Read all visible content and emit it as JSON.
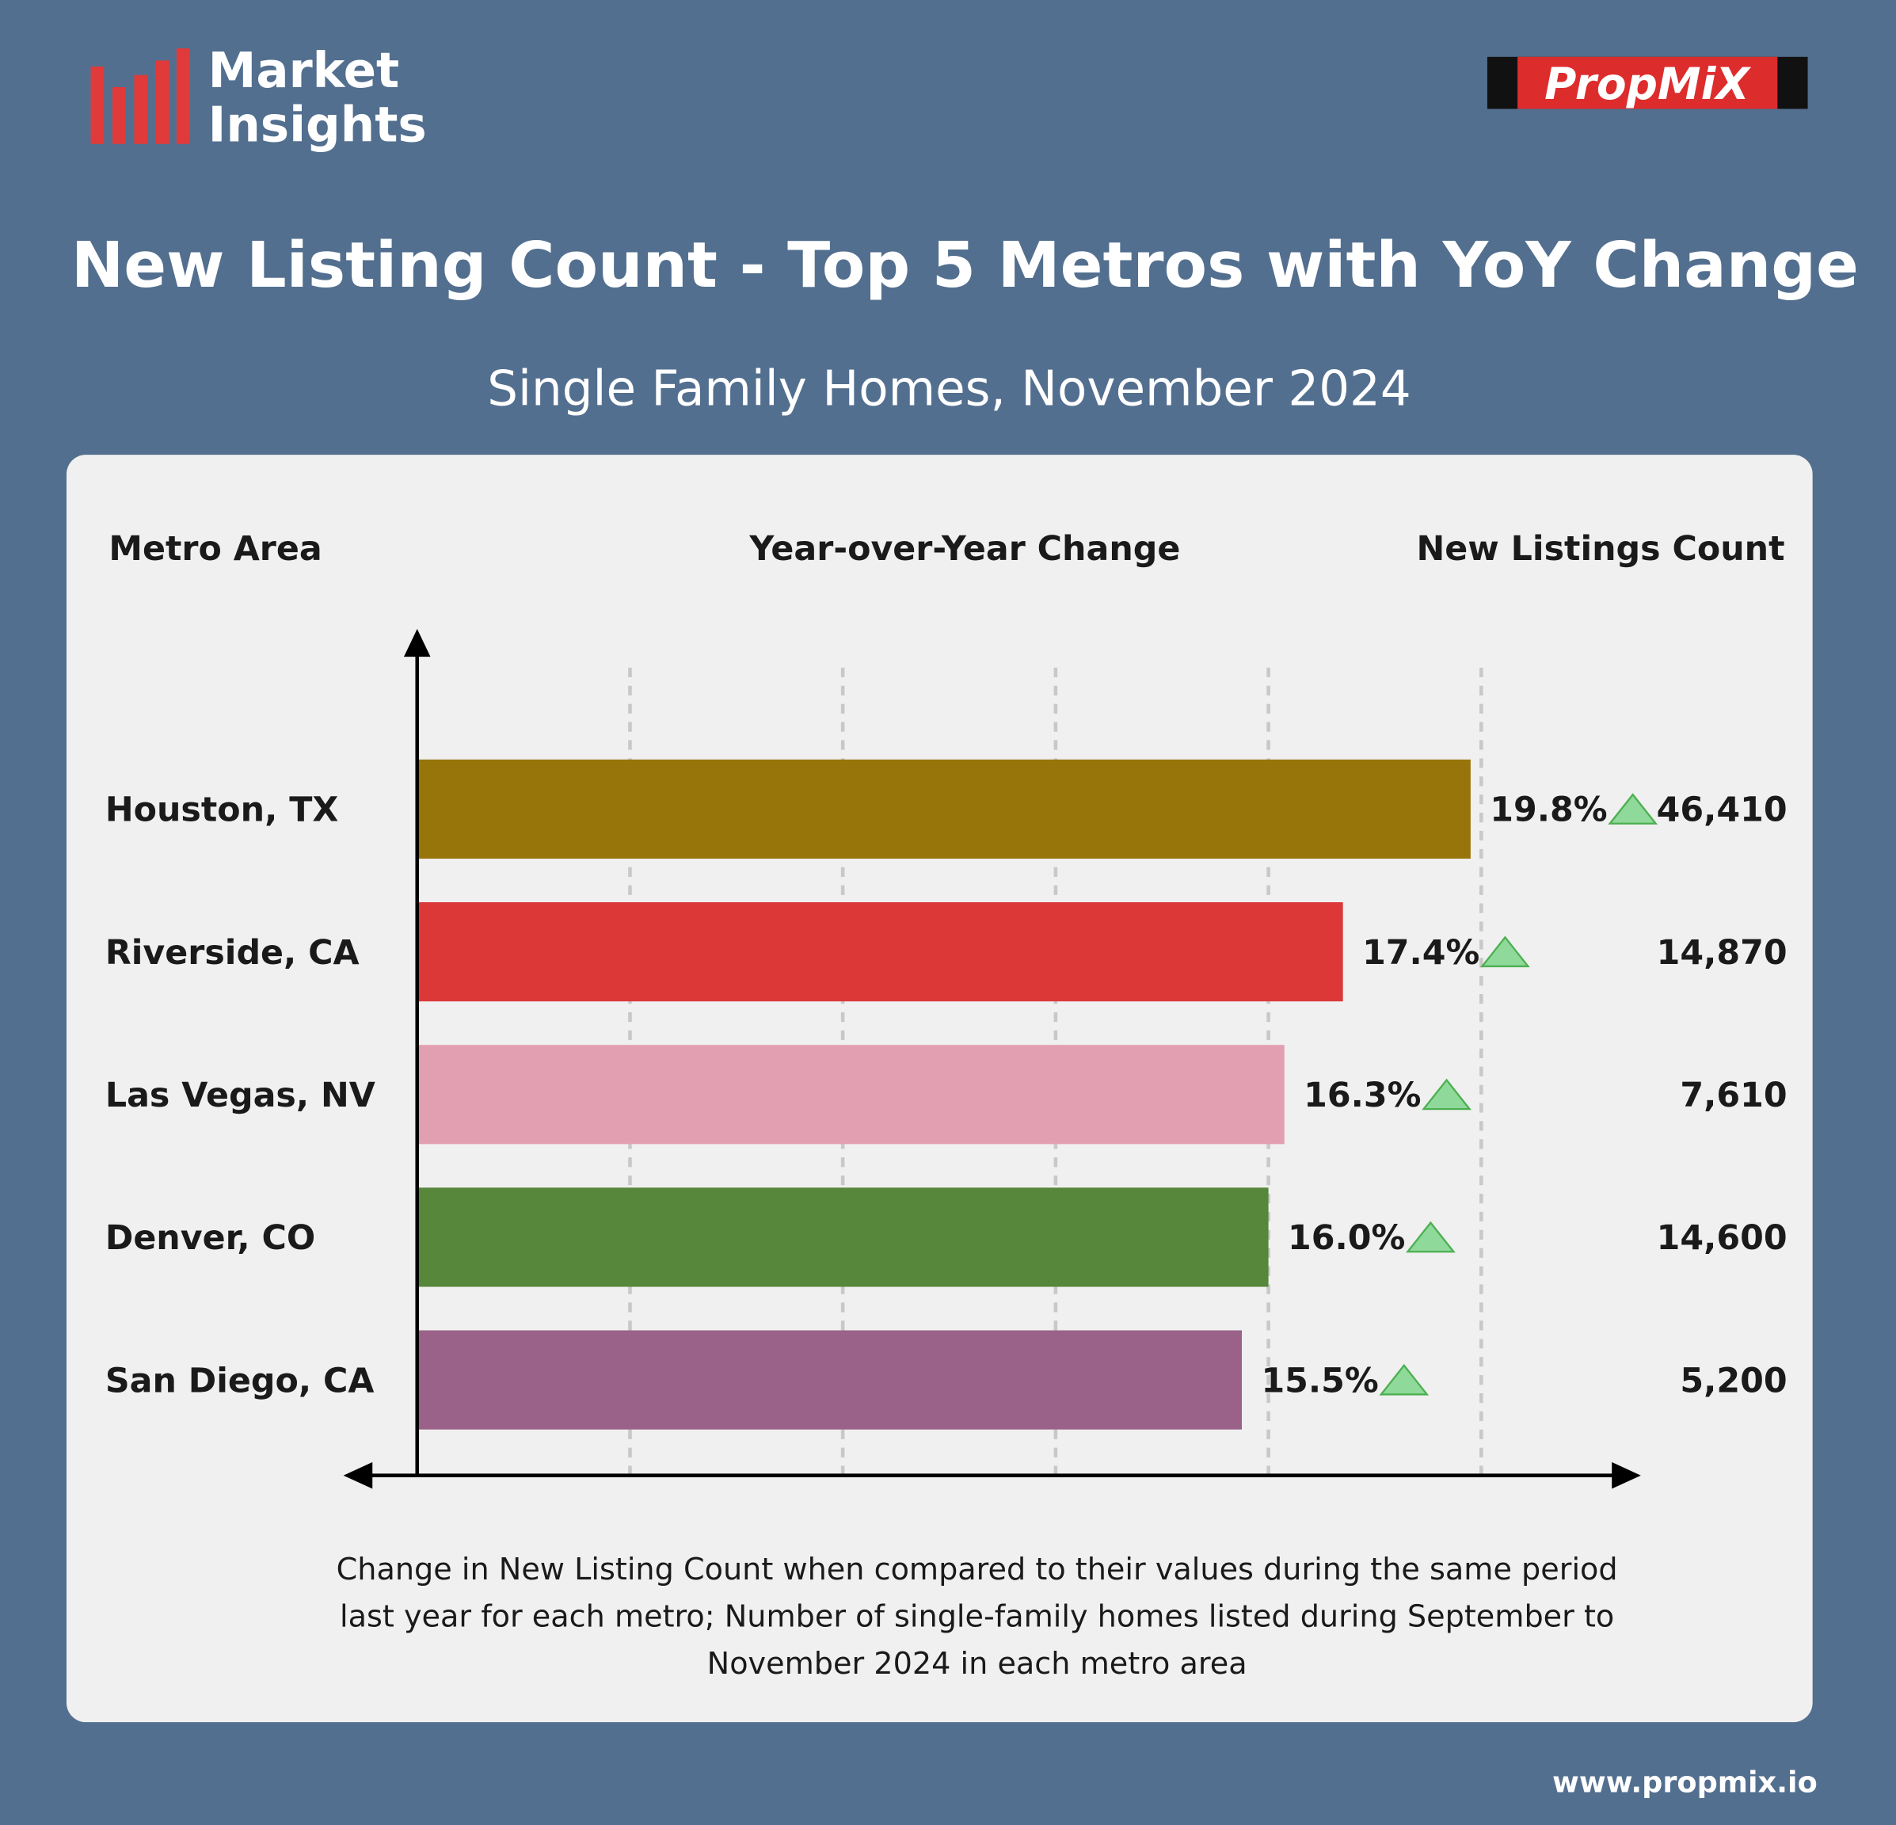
{
  "brand": {
    "name_lines": [
      "Market",
      "Insights"
    ],
    "logo": "PropMiX",
    "website": "www.propmix.io"
  },
  "chart_data": {
    "type": "bar",
    "orientation": "horizontal",
    "title": "New Listing Count - Top 5 Metros with YoY Change",
    "subtitle": "Single Family Homes, November 2024",
    "column_headers": [
      "Metro Area",
      "Year-over-Year Change",
      "New Listings Count"
    ],
    "categories": [
      "Houston, TX",
      "Riverside, CA",
      "Las Vegas, NV",
      "Denver, CO",
      "San Diego, CA"
    ],
    "values": [
      19.8,
      17.4,
      16.3,
      16.0,
      15.5
    ],
    "value_labels": [
      "19.8%",
      "17.4%",
      "16.3%",
      "16.0%",
      "15.5%"
    ],
    "colors": [
      "#98750a",
      "#dc3838",
      "#e39fb2",
      "#56873a",
      "#9a6289"
    ],
    "counts": [
      46410,
      14870,
      7610,
      14600,
      5200
    ],
    "count_labels": [
      "46,410",
      "14,870",
      "7,610",
      "14,600",
      "5,200"
    ],
    "xlim": [
      0,
      23
    ],
    "xticks": [
      4,
      8,
      12,
      16,
      20
    ],
    "grid": true,
    "note_lines": [
      "Change in New Listing Count when compared to their values during the same period",
      "last year for each metro;  Number of single-family homes listed during September to",
      "November 2024 in each metro area"
    ]
  }
}
